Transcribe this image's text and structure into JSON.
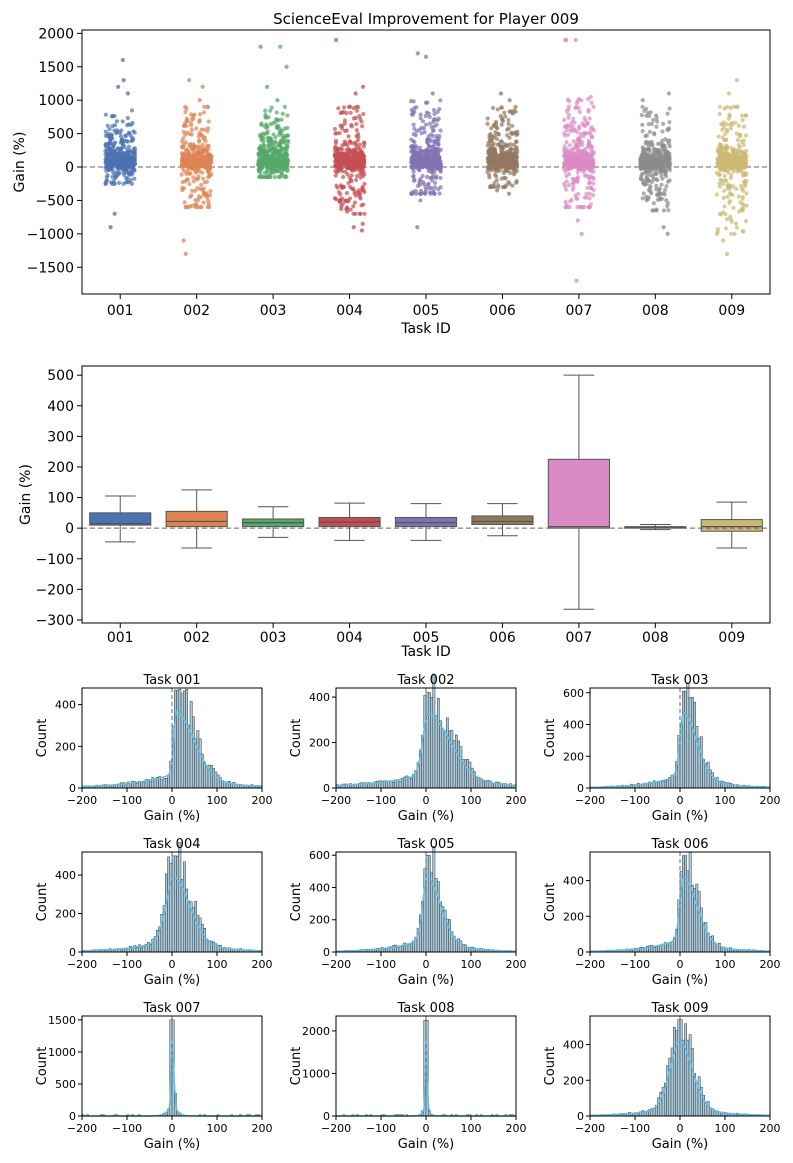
{
  "chart_data": [
    {
      "type": "scatter",
      "title": "ScienceEval Improvement for Player 009",
      "xlabel": "Task ID",
      "ylabel": "Gain (%)",
      "categories": [
        "001",
        "002",
        "003",
        "004",
        "005",
        "006",
        "007",
        "008",
        "009"
      ],
      "y_ticks": [
        "−1500",
        "−1000",
        "−500",
        "0",
        "500",
        "1000",
        "1500",
        "2000"
      ],
      "y_tick_values": [
        -1500,
        -1000,
        -500,
        0,
        500,
        1000,
        1500,
        2000
      ],
      "ylim": [
        -1900,
        2050
      ],
      "reference_line": 0,
      "series": [
        {
          "name": "001",
          "color": "#4c72b0",
          "core": [
            -250,
            850
          ],
          "min": -900,
          "max": 1600,
          "outliers": [
            -700,
            -900,
            1200,
            1300,
            1600,
            1100
          ]
        },
        {
          "name": "002",
          "color": "#dd8452",
          "core": [
            -600,
            900
          ],
          "min": -1300,
          "max": 1300,
          "outliers": [
            -1100,
            -1300,
            1000,
            1200,
            1300
          ]
        },
        {
          "name": "003",
          "color": "#55a868",
          "core": [
            -150,
            900
          ],
          "min": -200,
          "max": 1800,
          "outliers": [
            1000,
            1200,
            1500,
            1800,
            1800
          ]
        },
        {
          "name": "004",
          "color": "#c44e52",
          "core": [
            -700,
            900
          ],
          "min": -950,
          "max": 1900,
          "outliers": [
            -850,
            -900,
            -950,
            1100,
            1200,
            1900
          ]
        },
        {
          "name": "005",
          "color": "#8172b3",
          "core": [
            -400,
            1000
          ],
          "min": -900,
          "max": 1700,
          "outliers": [
            -500,
            -900,
            1100,
            1650,
            1700
          ]
        },
        {
          "name": "006",
          "color": "#937860",
          "core": [
            -300,
            900
          ],
          "min": -400,
          "max": 1100,
          "outliers": [
            -350,
            -400,
            1000,
            1100
          ]
        },
        {
          "name": "007",
          "color": "#da8bc3",
          "core": [
            -600,
            1100
          ],
          "min": -1700,
          "max": 1900,
          "outliers": [
            -800,
            -1000,
            -1700,
            1900,
            1900,
            1900
          ]
        },
        {
          "name": "008",
          "color": "#8c8c8c",
          "core": [
            -650,
            900
          ],
          "min": -1000,
          "max": 1100,
          "outliers": [
            -900,
            -1000,
            1000,
            1100
          ]
        },
        {
          "name": "009",
          "color": "#ccb974",
          "core": [
            -1000,
            900
          ],
          "min": -1300,
          "max": 1300,
          "outliers": [
            -1100,
            -1300,
            1100,
            1300
          ]
        }
      ]
    },
    {
      "type": "box",
      "xlabel": "Task ID",
      "ylabel": "Gain (%)",
      "categories": [
        "001",
        "002",
        "003",
        "004",
        "005",
        "006",
        "007",
        "008",
        "009"
      ],
      "y_ticks": [
        "−300",
        "−200",
        "−100",
        "0",
        "100",
        "200",
        "300",
        "400",
        "500"
      ],
      "y_tick_values": [
        -300,
        -200,
        -100,
        0,
        100,
        200,
        300,
        400,
        500
      ],
      "ylim": [
        -310,
        530
      ],
      "reference_line": 0,
      "boxes": [
        {
          "name": "001",
          "color": "#4c72b0",
          "whisker_low": -45,
          "q1": 10,
          "median": 15,
          "q3": 50,
          "whisker_high": 105
        },
        {
          "name": "002",
          "color": "#dd8452",
          "whisker_low": -65,
          "q1": 5,
          "median": 22,
          "q3": 55,
          "whisker_high": 125
        },
        {
          "name": "003",
          "color": "#55a868",
          "whisker_low": -30,
          "q1": 5,
          "median": 18,
          "q3": 30,
          "whisker_high": 70
        },
        {
          "name": "004",
          "color": "#c44e52",
          "whisker_low": -40,
          "q1": 5,
          "median": 20,
          "q3": 35,
          "whisker_high": 82
        },
        {
          "name": "005",
          "color": "#8172b3",
          "whisker_low": -40,
          "q1": 5,
          "median": 18,
          "q3": 35,
          "whisker_high": 80
        },
        {
          "name": "006",
          "color": "#937860",
          "whisker_low": -25,
          "q1": 12,
          "median": 22,
          "q3": 40,
          "whisker_high": 80
        },
        {
          "name": "007",
          "color": "#da8bc3",
          "whisker_low": -265,
          "q1": 0,
          "median": 5,
          "q3": 225,
          "whisker_high": 500
        },
        {
          "name": "008",
          "color": "#8c8c8c",
          "whisker_low": -5,
          "q1": 0,
          "median": 2,
          "q3": 5,
          "whisker_high": 12
        },
        {
          "name": "009",
          "color": "#ccb974",
          "whisker_low": -65,
          "q1": -10,
          "median": 5,
          "q3": 28,
          "whisker_high": 85
        }
      ]
    },
    {
      "type": "histogram",
      "xlabel": "Gain (%)",
      "ylabel": "Count",
      "xlim": [
        -200,
        200
      ],
      "x_ticks": [
        "−200",
        "−100",
        "0",
        "100",
        "200"
      ],
      "x_tick_values": [
        -200,
        -100,
        0,
        100,
        200
      ],
      "reference_line": 0,
      "bin_width": 5,
      "bar_color": "#a8c9dc",
      "kde_color": "#62bde0",
      "panels": [
        {
          "title": "Task 001",
          "ymax": 480,
          "y_ticks": [
            "0",
            "200",
            "400"
          ],
          "y_tick_values": [
            0,
            200,
            400
          ],
          "peak": 470,
          "center": 10,
          "sd_left": 6,
          "sd_right": 40
        },
        {
          "title": "Task 002",
          "ymax": 440,
          "y_ticks": [
            "0",
            "200",
            "400"
          ],
          "y_tick_values": [
            0,
            200,
            400
          ],
          "peak": 420,
          "center": 5,
          "sd_left": 12,
          "sd_right": 50
        },
        {
          "title": "Task 003",
          "ymax": 630,
          "y_ticks": [
            "0",
            "200",
            "400",
            "600"
          ],
          "y_tick_values": [
            0,
            200,
            400,
            600
          ],
          "peak": 610,
          "center": 8,
          "sd_left": 8,
          "sd_right": 30
        },
        {
          "title": "Task 004",
          "ymax": 520,
          "y_ticks": [
            "0",
            "200",
            "400"
          ],
          "y_tick_values": [
            0,
            200,
            400
          ],
          "peak": 500,
          "center": 5,
          "sd_left": 18,
          "sd_right": 35
        },
        {
          "title": "Task 005",
          "ymax": 620,
          "y_ticks": [
            "0",
            "200",
            "400",
            "600"
          ],
          "y_tick_values": [
            0,
            200,
            400,
            600
          ],
          "peak": 600,
          "center": 3,
          "sd_left": 10,
          "sd_right": 30
        },
        {
          "title": "Task 006",
          "ymax": 560,
          "y_ticks": [
            "0",
            "200",
            "400"
          ],
          "y_tick_values": [
            0,
            200,
            400
          ],
          "peak": 540,
          "center": 8,
          "sd_left": 8,
          "sd_right": 30
        },
        {
          "title": "Task 007",
          "ymax": 1560,
          "y_ticks": [
            "0",
            "500",
            "1000",
            "1500"
          ],
          "y_tick_values": [
            0,
            500,
            1000,
            1500
          ],
          "peak": 1500,
          "center": 0,
          "sd_left": 2,
          "sd_right": 4
        },
        {
          "title": "Task 008",
          "ymax": 2350,
          "y_ticks": [
            "0",
            "1000",
            "2000"
          ],
          "y_tick_values": [
            0,
            1000,
            2000
          ],
          "peak": 2250,
          "center": 0,
          "sd_left": 1.5,
          "sd_right": 2.5
        },
        {
          "title": "Task 009",
          "ymax": 560,
          "y_ticks": [
            "0",
            "200",
            "400"
          ],
          "y_tick_values": [
            0,
            200,
            400
          ],
          "peak": 540,
          "center": 0,
          "sd_left": 22,
          "sd_right": 28
        }
      ]
    }
  ]
}
